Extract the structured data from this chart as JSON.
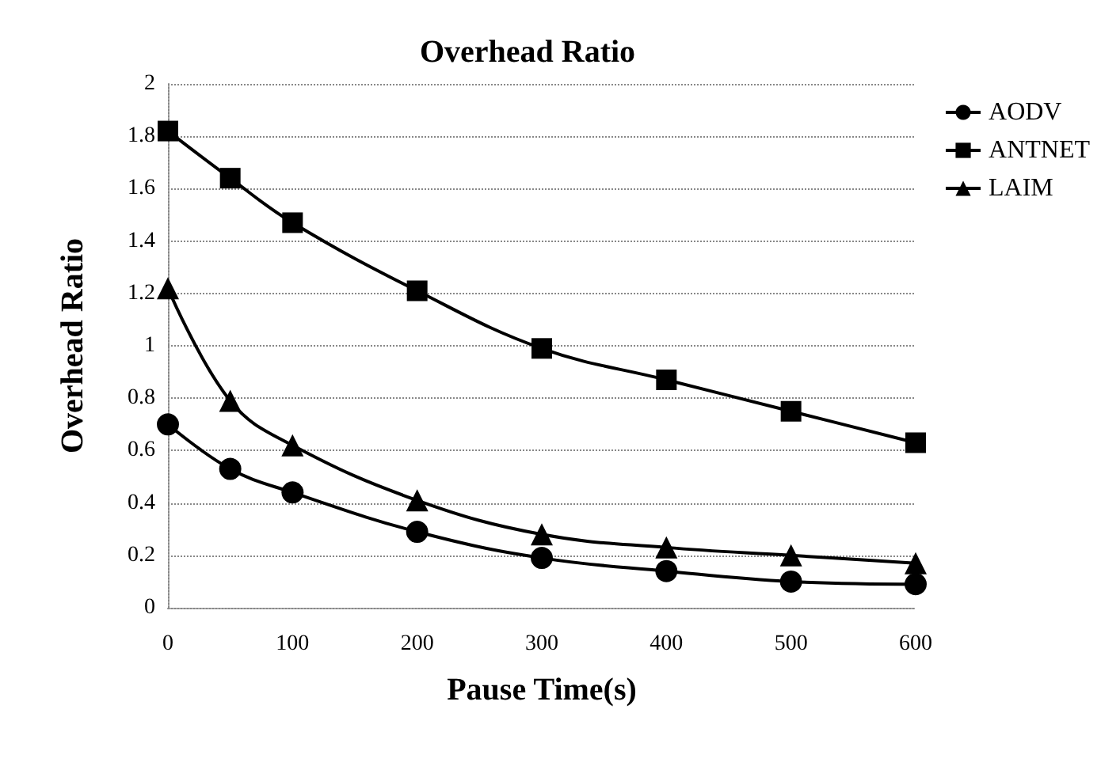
{
  "chart_data": {
    "type": "line",
    "title": "Overhead Ratio",
    "xlabel": "Pause Time(s)",
    "ylabel": "Overhead Ratio",
    "x": [
      0,
      50,
      100,
      200,
      300,
      400,
      500,
      600
    ],
    "series": [
      {
        "name": "AODV",
        "color": "#000000",
        "marker": "circle",
        "values": [
          0.7,
          0.53,
          0.44,
          0.29,
          0.19,
          0.14,
          0.1,
          0.09
        ]
      },
      {
        "name": "ANTNET",
        "color": "#000000",
        "marker": "square",
        "values": [
          1.82,
          1.64,
          1.47,
          1.21,
          0.99,
          0.87,
          0.75,
          0.63
        ]
      },
      {
        "name": "LAIM",
        "color": "#000000",
        "marker": "triangle",
        "values": [
          1.22,
          0.79,
          0.62,
          0.41,
          0.28,
          0.23,
          0.2,
          0.17
        ]
      }
    ],
    "xlim": [
      0,
      600
    ],
    "xticks": [
      0,
      100,
      200,
      300,
      400,
      500,
      600
    ],
    "ylim": [
      0,
      2
    ],
    "yticks": [
      0,
      0.2,
      0.4,
      0.6,
      0.8,
      1,
      1.2,
      1.4,
      1.6,
      1.8,
      2
    ],
    "grid": "y",
    "legend": "top right",
    "line_style": "solid"
  }
}
